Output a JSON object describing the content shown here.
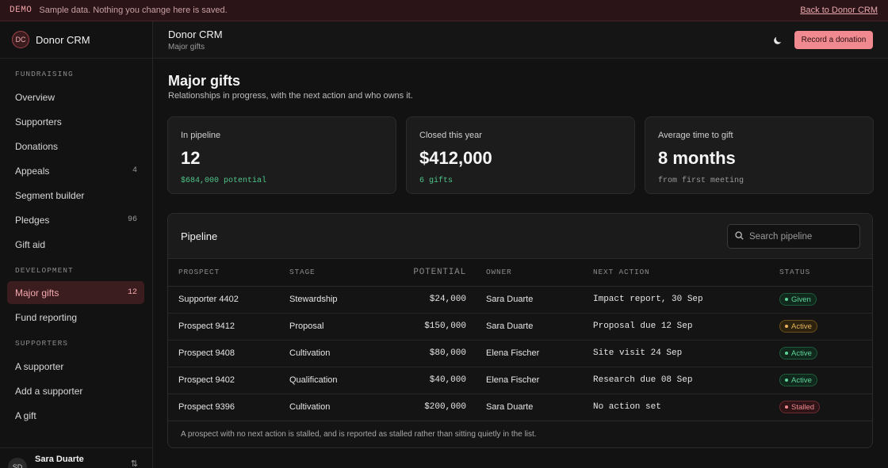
{
  "banner": {
    "tag": "DEMO",
    "message": "Sample data. Nothing you change here is saved.",
    "back_link": "Back to Donor CRM"
  },
  "sidebar": {
    "logo_initials": "DC",
    "app_name": "Donor CRM",
    "sections": [
      {
        "label": "FUNDRAISING",
        "items": [
          {
            "label": "Overview",
            "count": ""
          },
          {
            "label": "Supporters",
            "count": ""
          },
          {
            "label": "Donations",
            "count": ""
          },
          {
            "label": "Appeals",
            "count": "4"
          },
          {
            "label": "Segment builder",
            "count": ""
          },
          {
            "label": "Pledges",
            "count": "96"
          },
          {
            "label": "Gift aid",
            "count": ""
          }
        ]
      },
      {
        "label": "DEVELOPMENT",
        "items": [
          {
            "label": "Major gifts",
            "count": "12",
            "active": true
          },
          {
            "label": "Fund reporting",
            "count": ""
          }
        ]
      },
      {
        "label": "SUPPORTERS",
        "items": [
          {
            "label": "A supporter",
            "count": ""
          },
          {
            "label": "Add a supporter",
            "count": ""
          },
          {
            "label": "A gift",
            "count": ""
          }
        ]
      }
    ],
    "user": {
      "initials": "SD",
      "name": "Sara Duarte"
    }
  },
  "topbar": {
    "title": "Donor CRM",
    "subtitle": "Major gifts",
    "theme_icon": "moon-icon",
    "record_button": "Record a donation"
  },
  "main": {
    "title": "Major gifts",
    "subtitle": "Relationships in progress, with the next action and who owns it.",
    "stats": [
      {
        "label": "In pipeline",
        "value": "12",
        "sub": "$684,000 potential",
        "tone": "green"
      },
      {
        "label": "Closed this year",
        "value": "$412,000",
        "sub": "6 gifts",
        "tone": "green"
      },
      {
        "label": "Average time to gift",
        "value": "8 months",
        "sub": "from first meeting",
        "tone": "grey"
      }
    ],
    "pipeline": {
      "title": "Pipeline",
      "search_placeholder": "Search pipeline",
      "columns": [
        "PROSPECT",
        "STAGE",
        "POTENTIAL",
        "OWNER",
        "NEXT ACTION",
        "STATUS"
      ],
      "rows": [
        {
          "prospect": "Supporter 4402",
          "stage": "Stewardship",
          "potential": "$24,000",
          "owner": "Sara Duarte",
          "next": "Impact report, 30 Sep",
          "status": "Given",
          "tone": "green"
        },
        {
          "prospect": "Prospect 9412",
          "stage": "Proposal",
          "potential": "$150,000",
          "owner": "Sara Duarte",
          "next": "Proposal due 12 Sep",
          "status": "Active",
          "tone": "amber"
        },
        {
          "prospect": "Prospect 9408",
          "stage": "Cultivation",
          "potential": "$80,000",
          "owner": "Elena Fischer",
          "next": "Site visit 24 Sep",
          "status": "Active",
          "tone": "green"
        },
        {
          "prospect": "Prospect 9402",
          "stage": "Qualification",
          "potential": "$40,000",
          "owner": "Elena Fischer",
          "next": "Research due 08 Sep",
          "status": "Active",
          "tone": "green"
        },
        {
          "prospect": "Prospect 9396",
          "stage": "Cultivation",
          "potential": "$200,000",
          "owner": "Sara Duarte",
          "next": "No action set",
          "status": "Stalled",
          "tone": "red"
        }
      ],
      "footnote": "A prospect with no next action is stalled, and is reported as stalled rather than sitting quietly in the list."
    }
  }
}
